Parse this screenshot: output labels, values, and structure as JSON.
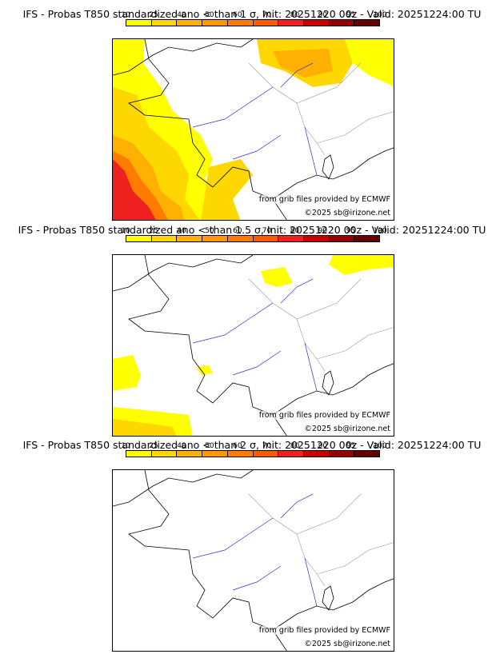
{
  "colorscale": {
    "ticks": [
      "10",
      "25",
      "40",
      "50",
      "60",
      "70",
      "80",
      "90",
      "95",
      "100"
    ],
    "colors": [
      "#ffff00",
      "#ffd700",
      "#ffb000",
      "#ff9800",
      "#ff7c00",
      "#ff5a00",
      "#ee2020",
      "#c80000",
      "#960000",
      "#640000"
    ]
  },
  "credits": {
    "source": "from grib files provided by ECMWF",
    "copyright": "©2025 sb@irizone.net"
  },
  "panels": [
    {
      "title": "IFS - Probas T850  standardized ano < than 1 σ, Init: 20251220 00z - Valid: 20251224:00 TU"
    },
    {
      "title": "IFS - Probas T850  standardized ano < than 1.5 σ, Init: 20251220 00z - Valid: 20251224:00 TU"
    },
    {
      "title": "IFS - Probas T850  standardized ano < than 2 σ, Init: 20251220 00z - Valid: 20251224:00 TU"
    }
  ]
}
